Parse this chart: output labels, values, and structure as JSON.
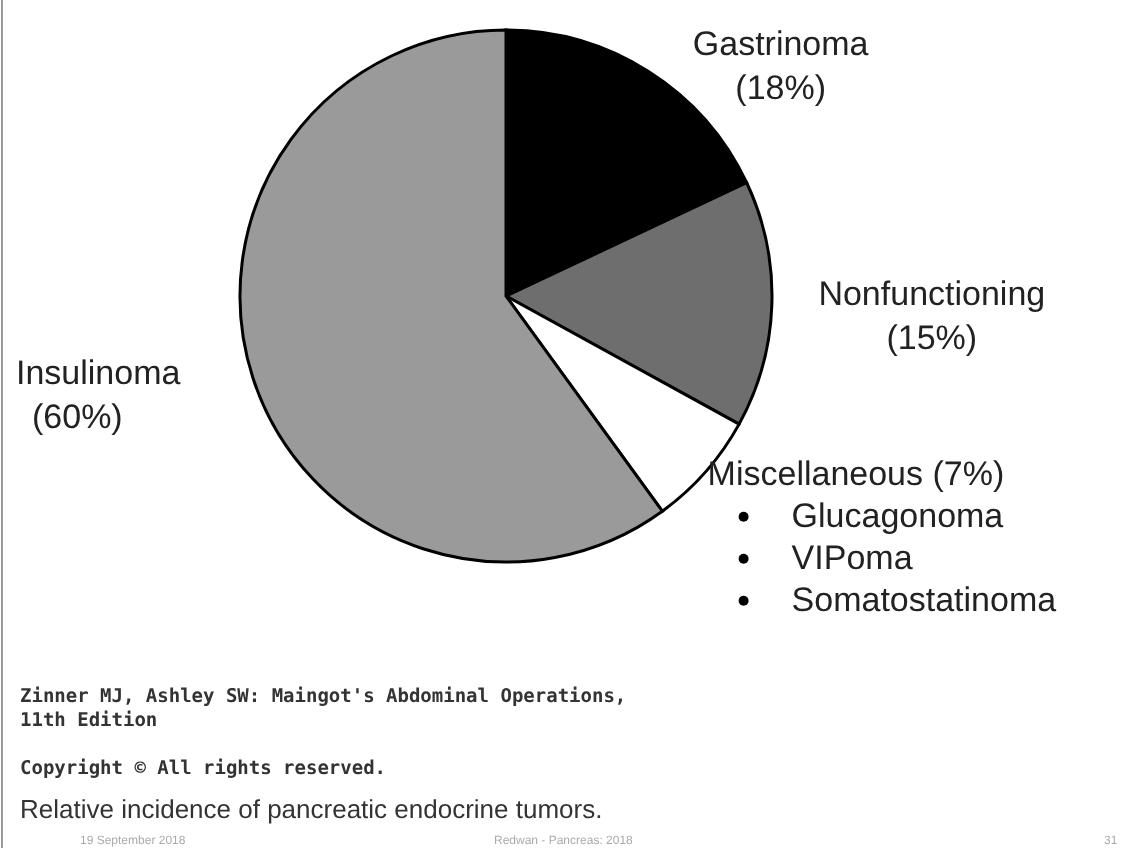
{
  "chart_data": {
    "type": "pie",
    "title": "Relative incidence of pancreatic endocrine tumors.",
    "categories": [
      "Gastrinoma",
      "Nonfunctioning",
      "Miscellaneous",
      "Insulinoma"
    ],
    "values": [
      18,
      15,
      7,
      60
    ],
    "value_labels": [
      "(18%)",
      "(15%)",
      "(7%)",
      "(60%)"
    ],
    "colors": [
      "#000000",
      "#6e6e6e",
      "#ffffff",
      "#9a9a9a"
    ],
    "annotations": [
      "Glucagonoma",
      "VIPoma",
      "Somatostatinoma",
      "Zinner MJ, Ashley SW: Maingot's Abdominal Operations,",
      "11th Edition",
      "Copyright © All rights reserved.",
      "19 September 2018",
      "Redwan - Pancreas: 2018",
      "31"
    ]
  }
}
